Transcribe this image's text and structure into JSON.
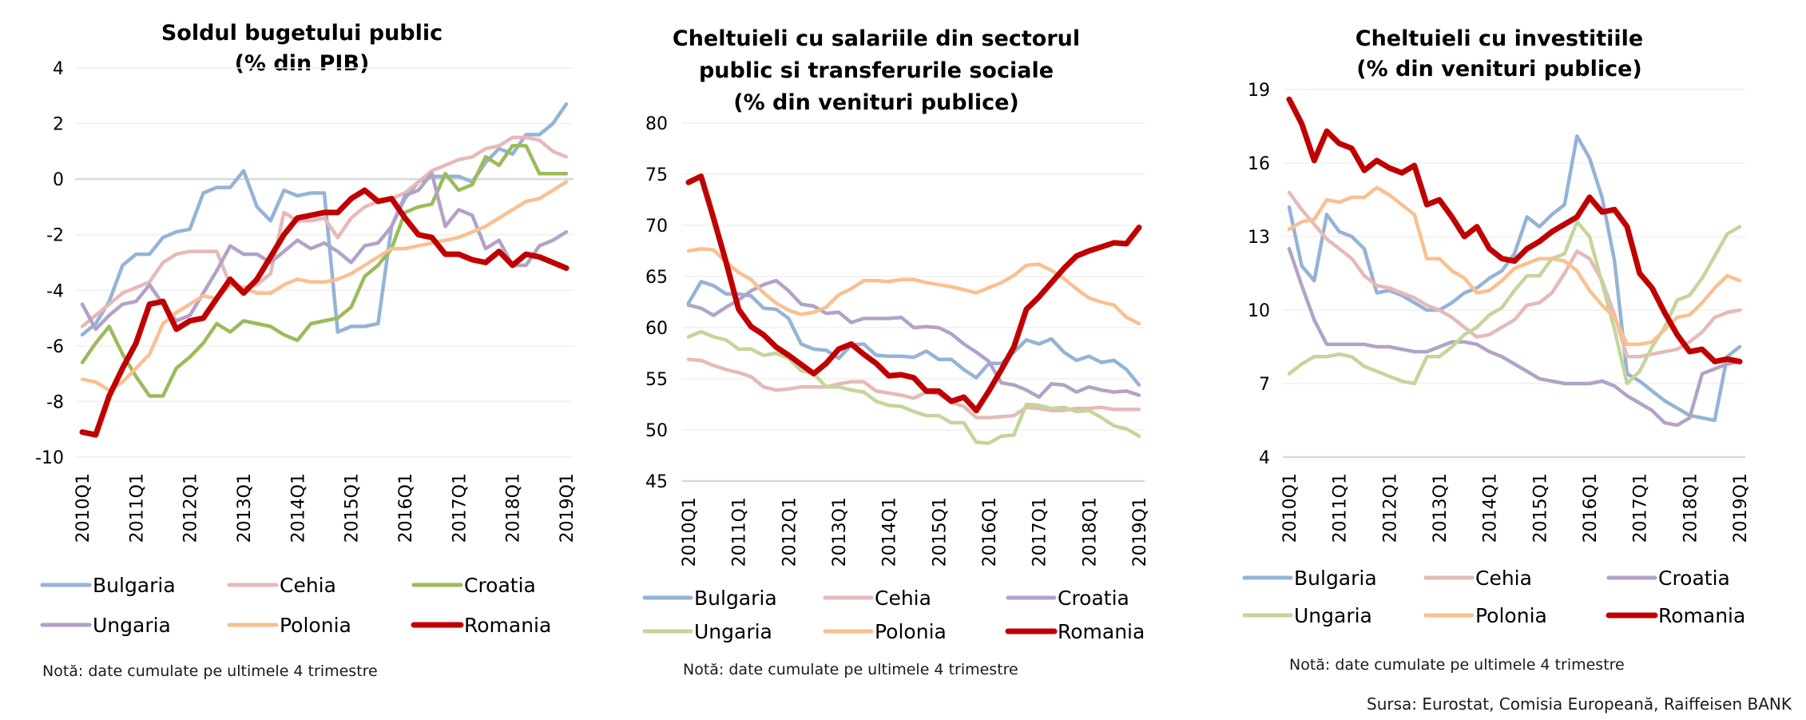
{
  "source": "Sursa: Eurostat, Comisia Europeană, Raiffeisen BANK",
  "colors": {
    "Bulgaria": "#95b3d7",
    "Cehia": "#e6b9b8",
    "Croatia_chart1": "#9bbb59",
    "Ungaria_chart1": "#b3a2c7",
    "Croatia": "#b3a2c7",
    "Ungaria": "#c3d69b",
    "Polonia": "#fac090",
    "Romania": "#c00000"
  },
  "chart_data": [
    {
      "type": "line",
      "title": [
        "Soldul bugetului public",
        "(% din PIB)"
      ],
      "xlabel": "",
      "ylabel": "",
      "ylim": [
        -10,
        4
      ],
      "yticks": [
        4,
        2,
        0,
        -2,
        -4,
        -6,
        -8,
        -10
      ],
      "xtick_labels": [
        "2010Q1",
        "2011Q1",
        "2012Q1",
        "2013Q1",
        "2014Q1",
        "2015Q1",
        "2016Q1",
        "2017Q1",
        "2018Q1",
        "2019Q1"
      ],
      "grid": true,
      "legend_position": "bottom",
      "note": "Notă: date cumulate pe ultimele 4 trimestre",
      "legend": [
        "Bulgaria",
        "Cehia",
        "Croatia",
        "Ungaria",
        "Polonia",
        "Romania"
      ],
      "series": [
        {
          "name": "Bulgaria",
          "color": "#95b3d7",
          "values": [
            -5.6,
            -5.2,
            -4.4,
            -3.1,
            -2.7,
            -2.7,
            -2.1,
            -1.9,
            -1.8,
            -0.5,
            -0.3,
            -0.3,
            0.3,
            -1.0,
            -1.5,
            -0.4,
            -0.6,
            -0.5,
            -0.5,
            -5.5,
            -5.3,
            -5.3,
            -5.2,
            -1.7,
            -0.7,
            -0.1,
            0.1,
            0.1,
            0.1,
            -0.1,
            0.6,
            1.1,
            0.9,
            1.6,
            1.6,
            2.0,
            2.7
          ]
        },
        {
          "name": "Cehia",
          "color": "#e6b9b8",
          "values": [
            -5.3,
            -4.9,
            -4.5,
            -4.1,
            -3.9,
            -3.7,
            -3.0,
            -2.7,
            -2.6,
            -2.6,
            -2.6,
            -3.8,
            -3.9,
            -3.8,
            -3.4,
            -1.2,
            -1.5,
            -1.5,
            -1.4,
            -2.1,
            -1.4,
            -1.0,
            -0.8,
            -0.7,
            -0.5,
            -0.1,
            0.3,
            0.5,
            0.7,
            0.8,
            1.1,
            1.2,
            1.5,
            1.5,
            1.4,
            1.0,
            0.8
          ]
        },
        {
          "name": "Croatia",
          "color": "#9bbb59",
          "values": [
            -6.6,
            -5.9,
            -5.3,
            -6.3,
            -7.1,
            -7.8,
            -7.8,
            -6.8,
            -6.4,
            -5.9,
            -5.2,
            -5.5,
            -5.1,
            -5.2,
            -5.3,
            -5.6,
            -5.8,
            -5.2,
            -5.1,
            -5.0,
            -4.6,
            -3.5,
            -3.1,
            -2.5,
            -1.2,
            -1.0,
            -0.9,
            0.2,
            -0.4,
            -0.2,
            0.8,
            0.5,
            1.2,
            1.2,
            0.2,
            0.2,
            0.2
          ]
        },
        {
          "name": "Ungaria",
          "color": "#b3a2c7",
          "values": [
            -4.5,
            -5.4,
            -4.9,
            -4.5,
            -4.4,
            -3.8,
            -4.5,
            -5.1,
            -4.9,
            -4.1,
            -3.3,
            -2.4,
            -2.7,
            -2.7,
            -3.0,
            -2.6,
            -2.2,
            -2.5,
            -2.3,
            -2.6,
            -3.0,
            -2.4,
            -2.3,
            -1.7,
            -0.6,
            -0.4,
            0.2,
            -1.7,
            -1.1,
            -1.3,
            -2.5,
            -2.2,
            -3.1,
            -3.1,
            -2.4,
            -2.2,
            -1.9
          ]
        },
        {
          "name": "Polonia",
          "color": "#fac090",
          "values": [
            -7.2,
            -7.3,
            -7.6,
            -7.3,
            -6.8,
            -6.3,
            -5.2,
            -4.8,
            -4.5,
            -4.2,
            -4.3,
            -3.8,
            -3.9,
            -4.1,
            -4.1,
            -3.8,
            -3.6,
            -3.7,
            -3.7,
            -3.6,
            -3.4,
            -3.1,
            -2.8,
            -2.5,
            -2.5,
            -2.4,
            -2.3,
            -2.2,
            -2.1,
            -1.9,
            -1.7,
            -1.4,
            -1.1,
            -0.8,
            -0.7,
            -0.4,
            -0.1
          ]
        },
        {
          "name": "Romania",
          "color": "#c00000",
          "values": [
            -9.1,
            -9.2,
            -7.8,
            -6.8,
            -5.9,
            -4.5,
            -4.4,
            -5.4,
            -5.1,
            -5.0,
            -4.3,
            -3.6,
            -4.1,
            -3.6,
            -2.8,
            -2.0,
            -1.4,
            -1.3,
            -1.2,
            -1.2,
            -0.7,
            -0.4,
            -0.8,
            -0.7,
            -1.4,
            -2.0,
            -2.1,
            -2.7,
            -2.7,
            -2.9,
            -3.0,
            -2.6,
            -3.1,
            -2.7,
            -2.8,
            -3.0,
            -3.2
          ]
        }
      ]
    },
    {
      "type": "line",
      "title": [
        "Cheltuieli cu salariile din sectorul",
        "public si transferurile sociale",
        "(% din venituri publice)"
      ],
      "xlabel": "",
      "ylabel": "",
      "ylim": [
        45,
        80
      ],
      "yticks": [
        80,
        75,
        70,
        65,
        60,
        55,
        50,
        45
      ],
      "xtick_labels": [
        "2010Q1",
        "2011Q1",
        "2012Q1",
        "2013Q1",
        "2014Q1",
        "2015Q1",
        "2016Q1",
        "2017Q1",
        "2018Q1",
        "2019Q1"
      ],
      "grid": true,
      "legend_position": "bottom",
      "note": "Notă: date cumulate pe ultimele 4 trimestre",
      "legend": [
        "Bulgaria",
        "Cehia",
        "Croatia",
        "Ungaria",
        "Polonia",
        "Romania"
      ],
      "series": [
        {
          "name": "Bulgaria",
          "color": "#95b3d7",
          "values": [
            62.4,
            64.5,
            64.1,
            63.3,
            63.3,
            63.1,
            61.9,
            61.8,
            60.9,
            58.4,
            57.9,
            57.8,
            57.0,
            58.3,
            58.4,
            57.3,
            57.2,
            57.2,
            57.1,
            57.7,
            56.9,
            56.9,
            55.9,
            55.1,
            56.5,
            56.5,
            57.6,
            58.8,
            58.4,
            58.9,
            57.6,
            56.8,
            57.2,
            56.6,
            56.8,
            55.9,
            54.4
          ]
        },
        {
          "name": "Cehia",
          "color": "#e6b9b8",
          "values": [
            56.9,
            56.8,
            56.3,
            55.9,
            55.6,
            55.2,
            54.2,
            53.9,
            54.0,
            54.2,
            54.2,
            54.2,
            54.5,
            54.7,
            54.7,
            53.8,
            53.6,
            53.4,
            53.1,
            53.7,
            53.5,
            52.7,
            52.3,
            51.2,
            51.2,
            51.3,
            51.4,
            52.2,
            52.1,
            51.9,
            51.9,
            52.1,
            52.1,
            52.2,
            52.0,
            52.0,
            52.0
          ]
        },
        {
          "name": "Croatia",
          "color": "#b3a2c7",
          "values": [
            62.2,
            61.9,
            61.2,
            62.0,
            62.7,
            63.6,
            64.2,
            64.6,
            63.6,
            62.3,
            62.1,
            61.4,
            61.5,
            60.5,
            60.9,
            60.9,
            60.9,
            61.0,
            60.0,
            60.1,
            60.0,
            59.4,
            58.4,
            57.6,
            56.7,
            54.6,
            54.4,
            53.9,
            53.2,
            54.5,
            54.4,
            53.7,
            54.2,
            53.9,
            53.7,
            53.8,
            53.4
          ]
        },
        {
          "name": "Ungaria",
          "color": "#c3d69b",
          "values": [
            59.1,
            59.6,
            59.1,
            58.8,
            57.9,
            57.9,
            57.3,
            57.5,
            57.0,
            55.8,
            55.5,
            54.2,
            54.2,
            53.9,
            53.7,
            52.8,
            52.4,
            52.3,
            51.8,
            51.4,
            51.4,
            50.7,
            50.7,
            48.8,
            48.7,
            49.4,
            49.5,
            52.5,
            52.4,
            52.1,
            52.2,
            51.8,
            51.9,
            51.2,
            50.4,
            50.1,
            49.4
          ]
        },
        {
          "name": "Polonia",
          "color": "#fac090",
          "values": [
            67.5,
            67.7,
            67.6,
            66.4,
            65.4,
            64.7,
            63.4,
            62.4,
            61.7,
            61.3,
            61.5,
            62.0,
            63.2,
            63.8,
            64.6,
            64.6,
            64.5,
            64.7,
            64.7,
            64.4,
            64.2,
            64.0,
            63.7,
            63.4,
            63.9,
            64.4,
            65.1,
            66.1,
            66.2,
            65.6,
            64.8,
            63.8,
            62.9,
            62.5,
            62.2,
            61.0,
            60.4
          ]
        },
        {
          "name": "Romania",
          "color": "#c00000",
          "values": [
            74.2,
            74.8,
            70.7,
            66.4,
            61.8,
            60.1,
            59.3,
            58.1,
            57.3,
            56.4,
            55.5,
            56.5,
            57.9,
            58.4,
            57.4,
            56.5,
            55.3,
            55.4,
            55.1,
            53.8,
            53.8,
            52.8,
            53.2,
            51.9,
            53.8,
            55.9,
            58.1,
            61.8,
            63.0,
            64.4,
            65.8,
            67.0,
            67.5,
            67.9,
            68.3,
            68.2,
            69.8
          ]
        }
      ]
    },
    {
      "type": "line",
      "title": [
        "Cheltuieli cu investitiile",
        "(% din venituri publice)"
      ],
      "xlabel": "",
      "ylabel": "",
      "ylim": [
        4,
        19
      ],
      "yticks": [
        19,
        16,
        13,
        10,
        7,
        4
      ],
      "xtick_labels": [
        "2010Q1",
        "2011Q1",
        "2012Q1",
        "2013Q1",
        "2014Q1",
        "2015Q1",
        "2016Q1",
        "2017Q1",
        "2018Q1",
        "2019Q1"
      ],
      "grid": true,
      "legend_position": "bottom",
      "note": "Notă: date cumulate pe ultimele 4 trimestre",
      "legend": [
        "Bulgaria",
        "Cehia",
        "Croatia",
        "Ungaria",
        "Polonia",
        "Romania"
      ],
      "series": [
        {
          "name": "Bulgaria",
          "color": "#95b3d7",
          "values": [
            14.2,
            11.8,
            11.2,
            13.9,
            13.2,
            13.0,
            12.5,
            10.7,
            10.8,
            10.6,
            10.3,
            10.0,
            10.0,
            10.3,
            10.7,
            10.9,
            11.3,
            11.6,
            12.3,
            13.8,
            13.4,
            13.9,
            14.3,
            17.1,
            16.2,
            14.6,
            12.0,
            7.4,
            7.1,
            6.7,
            6.3,
            6.0,
            5.7,
            5.6,
            5.5,
            8.1,
            8.5
          ]
        },
        {
          "name": "Cehia",
          "color": "#e6b9b8",
          "values": [
            14.8,
            14.1,
            13.5,
            12.9,
            12.5,
            12.1,
            11.4,
            11.0,
            10.9,
            10.7,
            10.5,
            10.2,
            10.0,
            9.7,
            9.3,
            8.9,
            9.0,
            9.3,
            9.6,
            10.2,
            10.3,
            10.7,
            11.5,
            12.4,
            12.1,
            11.2,
            9.8,
            8.1,
            8.1,
            8.2,
            8.3,
            8.4,
            8.7,
            9.1,
            9.7,
            9.9,
            10.0
          ]
        },
        {
          "name": "Croatia",
          "color": "#b3a2c7",
          "values": [
            12.5,
            11.0,
            9.6,
            8.6,
            8.6,
            8.6,
            8.6,
            8.5,
            8.5,
            8.4,
            8.3,
            8.3,
            8.5,
            8.7,
            8.7,
            8.6,
            8.3,
            8.1,
            7.8,
            7.5,
            7.2,
            7.1,
            7.0,
            7.0,
            7.0,
            7.1,
            6.9,
            6.5,
            6.2,
            5.9,
            5.4,
            5.3,
            5.6,
            7.4,
            7.6,
            7.8,
            7.9
          ]
        },
        {
          "name": "Ungaria",
          "color": "#c3d69b",
          "values": [
            7.4,
            7.8,
            8.1,
            8.1,
            8.2,
            8.1,
            7.7,
            7.5,
            7.3,
            7.1,
            7.0,
            8.1,
            8.1,
            8.5,
            9.0,
            9.3,
            9.8,
            10.1,
            10.8,
            11.4,
            11.4,
            12.1,
            12.3,
            13.6,
            13.0,
            11.1,
            9.2,
            7.0,
            7.5,
            8.5,
            9.3,
            10.4,
            10.6,
            11.3,
            12.2,
            13.1,
            13.4
          ]
        },
        {
          "name": "Polonia",
          "color": "#fac090",
          "values": [
            13.3,
            13.6,
            13.7,
            14.5,
            14.4,
            14.6,
            14.6,
            15.0,
            14.7,
            14.3,
            13.9,
            12.1,
            12.1,
            11.6,
            11.3,
            10.7,
            10.8,
            11.2,
            11.7,
            11.9,
            12.1,
            12.1,
            12.0,
            11.6,
            10.8,
            10.2,
            9.7,
            8.6,
            8.6,
            8.7,
            9.2,
            9.7,
            9.8,
            10.3,
            10.9,
            11.4,
            11.2
          ]
        },
        {
          "name": "Romania",
          "color": "#c00000",
          "values": [
            18.6,
            17.6,
            16.1,
            17.3,
            16.8,
            16.6,
            15.7,
            16.1,
            15.8,
            15.6,
            15.9,
            14.3,
            14.5,
            13.8,
            13.0,
            13.4,
            12.5,
            12.1,
            12.0,
            12.5,
            12.8,
            13.2,
            13.5,
            13.8,
            14.6,
            14.0,
            14.1,
            13.4,
            11.5,
            10.9,
            9.9,
            9.0,
            8.3,
            8.4,
            7.9,
            8.0,
            7.9
          ]
        }
      ]
    }
  ]
}
